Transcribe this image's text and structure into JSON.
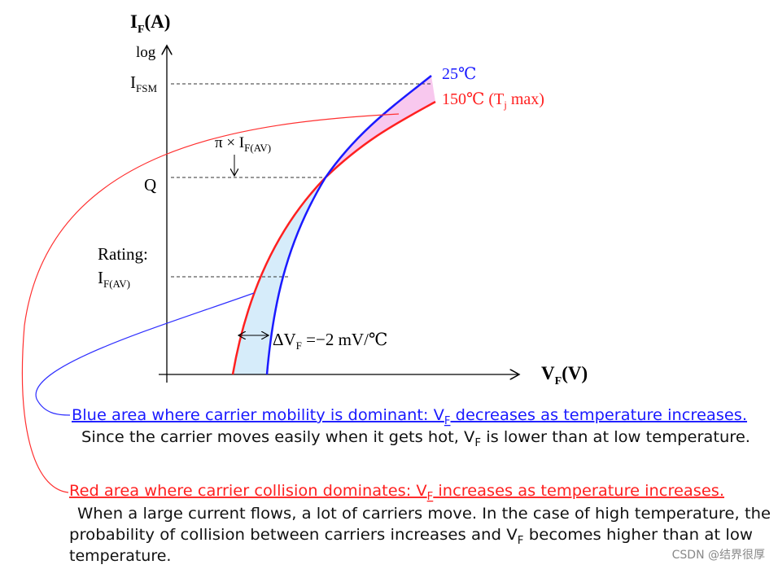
{
  "axes": {
    "y_label": {
      "main": "I",
      "sub": "F",
      "rest": "(A)"
    },
    "y_scale": "log",
    "x_label": {
      "main": "V",
      "sub": "F",
      "rest": "(V)"
    }
  },
  "levels": {
    "ifsm": {
      "main": "I",
      "sub": "FSM"
    },
    "pi": {
      "main": "π × I",
      "sub": "F(AV)"
    },
    "q": "Q",
    "rating": {
      "line1": "Rating:",
      "main": "I",
      "sub": "F(AV)"
    }
  },
  "curves": {
    "t25": "25℃",
    "t150": {
      "main": "150℃ (T",
      "sub": "j",
      "rest": " max)"
    },
    "delta": {
      "main": "ΔV",
      "sub": "F",
      "rest": " =−2 mV/℃"
    }
  },
  "blue_note": {
    "title": {
      "main": "Blue area where carrier mobility is dominant: V",
      "sub": "F",
      "rest": " decreases as temperature increases."
    },
    "body": {
      "main": "Since the carrier moves easily when it gets hot, V",
      "sub": "F",
      "rest": " is lower than at low temperature."
    }
  },
  "red_note": {
    "title": {
      "main": "Red area where carrier collision dominates: V",
      "sub": "F",
      "rest": " increases as temperature increases."
    },
    "body_line1": "When a large current flows, a lot of carriers move. In the case of high temperature, the",
    "body_line2": {
      "main": "probability of collision between carriers increases and V",
      "sub": "F",
      "rest": " becomes higher than at low"
    },
    "body_line3": "temperature."
  },
  "credit": "CSDN @结界很厚"
}
